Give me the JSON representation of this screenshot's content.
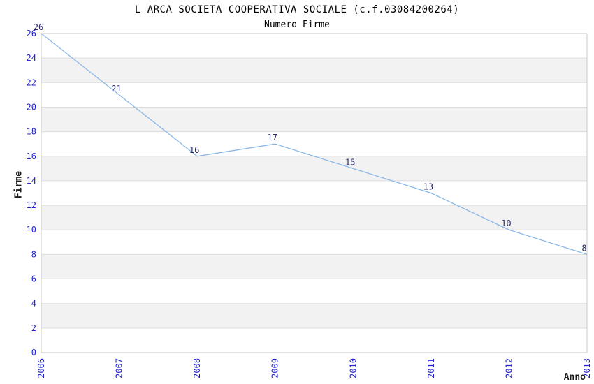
{
  "chart_data": {
    "type": "line",
    "title": "L ARCA SOCIETA COOPERATIVA SOCIALE (c.f.03084200264)",
    "subtitle": "Numero Firme",
    "xlabel": "Anno",
    "ylabel": "Firme",
    "categories": [
      "2006",
      "2007",
      "2008",
      "2009",
      "2010",
      "2011",
      "2012",
      "2013"
    ],
    "series": [
      {
        "name": "Numero Firme",
        "values": [
          26,
          21,
          16,
          17,
          15,
          13,
          10,
          8
        ]
      }
    ],
    "ylim": [
      0,
      26
    ],
    "ytick_step": 2,
    "grid": "alternating-horizontal-bands",
    "legend_position": "none",
    "colors": {
      "line": "#8cb8e6",
      "tick_label": "#2222cc",
      "data_label": "#2b2b66",
      "band_gray": "#f2f2f2",
      "band_white": "#ffffff",
      "grid_line": "#dcdcdc",
      "plot_border": "#c8c8c8",
      "title_text": "#000000",
      "axis_title_text": "#1a1a1a"
    }
  }
}
